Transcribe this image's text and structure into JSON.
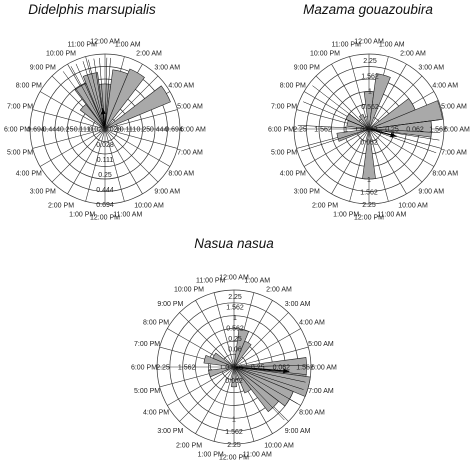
{
  "chart_data": [
    {
      "type": "rose",
      "title": "Didelphis marsupialis",
      "hour_labels": [
        "12:00 AM",
        "1:00 AM",
        "2:00 AM",
        "3:00 AM",
        "4:00 AM",
        "5:00 AM",
        "6:00 AM",
        "7:00 AM",
        "8:00 AM",
        "9:00 AM",
        "10:00 AM",
        "11:00 AM",
        "12:00 PM",
        "1:00 PM",
        "2:00 PM",
        "3:00 PM",
        "4:00 PM",
        "5:00 PM",
        "6:00 PM",
        "7:00 PM",
        "8:00 PM",
        "9:00 PM",
        "10:00 PM",
        "11:00 PM"
      ],
      "scale": "sqrt",
      "rmax": 0.694,
      "radial_ticks": [
        "0.028",
        "0.111",
        "0.25",
        "0.444",
        "0.694"
      ],
      "radial_tick_values": [
        0.028,
        0.111,
        0.25,
        0.444,
        0.694
      ],
      "horizontal_ticks": [
        "0.694",
        "0.444",
        "0.25",
        "0.111",
        "0.028",
        "0.028",
        "0.111",
        "0.25",
        "0.444",
        "0.694"
      ],
      "wedges": [
        {
          "hour": 0,
          "value": 0.25
        },
        {
          "hour": 1,
          "value": 0.44
        },
        {
          "hour": 2,
          "value": 0.52
        },
        {
          "hour": 4,
          "value": 0.62
        },
        {
          "hour": 21,
          "value": 0.12
        },
        {
          "hour": 22,
          "value": 0.3
        },
        {
          "hour": 23,
          "value": 0.4
        }
      ],
      "mean_vector": {
        "hour": 23.6,
        "length": 0.28
      },
      "observation_hours": [
        21.6,
        22.1,
        22.4,
        22.8,
        23.1,
        23.4,
        23.7,
        0.1,
        0.3
      ]
    },
    {
      "type": "rose",
      "title": "Mazama gouazoubira",
      "hour_labels": [
        "12:00 AM",
        "1:00 AM",
        "2:00 AM",
        "3:00 AM",
        "4:00 AM",
        "5:00 AM",
        "6:00 AM",
        "7:00 AM",
        "8:00 AM",
        "9:00 AM",
        "10:00 AM",
        "11:00 AM",
        "12:00 PM",
        "1:00 PM",
        "2:00 PM",
        "3:00 PM",
        "4:00 PM",
        "5:00 PM",
        "6:00 PM",
        "7:00 PM",
        "8:00 PM",
        "9:00 PM",
        "10:00 PM",
        "11:00 PM"
      ],
      "scale": "sqrt",
      "rmax": 2.25,
      "radial_ticks": [
        "0.062",
        "1",
        "1.562",
        "2.25"
      ],
      "radial_tick_values": [
        0.062,
        1,
        1.562,
        2.25
      ],
      "upper_ticks": [
        "2.25",
        "1.562",
        "1",
        "0.562"
      ],
      "horizontal_ticks": [
        "2.25",
        "1.562",
        "1",
        "0.562",
        "0.25",
        "0.062",
        "1.562"
      ],
      "wedges": [
        {
          "hour": 0,
          "value": 0.56
        },
        {
          "hour": 1,
          "value": 1.25
        },
        {
          "hour": 4,
          "value": 1.0
        },
        {
          "hour": 5,
          "value": 2.2
        },
        {
          "hour": 6,
          "value": 1.56
        },
        {
          "hour": 12,
          "value": 1.0
        },
        {
          "hour": 17,
          "value": 0.42
        },
        {
          "hour": 19,
          "value": 0.2
        },
        {
          "hour": 20,
          "value": 0.25
        },
        {
          "hour": 22,
          "value": 0.1
        }
      ],
      "mean_vector": {
        "hour": 7.0,
        "length": 0.38
      },
      "observation_hours": [
        5.5,
        6.2,
        6.6,
        7.3,
        16.8,
        18.2,
        19.5,
        20.5
      ]
    },
    {
      "type": "rose",
      "title": "Nasua nasua",
      "hour_labels": [
        "12:00 AM",
        "1:00 AM",
        "2:00 AM",
        "3:00 AM",
        "4:00 AM",
        "5:00 AM",
        "6:00 AM",
        "7:00 AM",
        "8:00 AM",
        "9:00 AM",
        "10:00 AM",
        "11:00 AM",
        "12:00 PM",
        "1:00 PM",
        "2:00 PM",
        "3:00 PM",
        "4:00 PM",
        "5:00 PM",
        "6:00 PM",
        "7:00 PM",
        "8:00 PM",
        "9:00 PM",
        "10:00 PM",
        "11:00 PM"
      ],
      "scale": "sqrt",
      "rmax": 2.25,
      "radial_ticks": [
        "0.062",
        "1",
        "1.562",
        "2.25"
      ],
      "radial_tick_values": [
        0.062,
        1,
        1.562,
        2.25
      ],
      "upper_ticks": [
        "2.25",
        "1.562",
        "1",
        "0.562",
        "0.25",
        "0.06"
      ],
      "horizontal_ticks": [
        "2.25",
        "1.562",
        "1",
        "0.562",
        "0.25",
        "0.062",
        "1.562"
      ],
      "wedges": [
        {
          "hour": 1,
          "value": 0.56
        },
        {
          "hour": 2,
          "value": 0.3
        },
        {
          "hour": 6,
          "value": 2.0
        },
        {
          "hour": 7,
          "value": 2.25
        },
        {
          "hour": 8,
          "value": 1.56
        },
        {
          "hour": 9,
          "value": 1.2
        },
        {
          "hour": 10,
          "value": 0.3
        },
        {
          "hour": 12,
          "value": 0.15
        },
        {
          "hour": 17,
          "value": 0.25
        },
        {
          "hour": 19,
          "value": 0.35
        },
        {
          "hour": 20,
          "value": 0.2
        }
      ],
      "mean_vector": {
        "hour": 6.3,
        "length": 0.72
      },
      "observation_hours": [
        5.9,
        6.4,
        6.8,
        7.2,
        8.0,
        9.1
      ]
    }
  ]
}
